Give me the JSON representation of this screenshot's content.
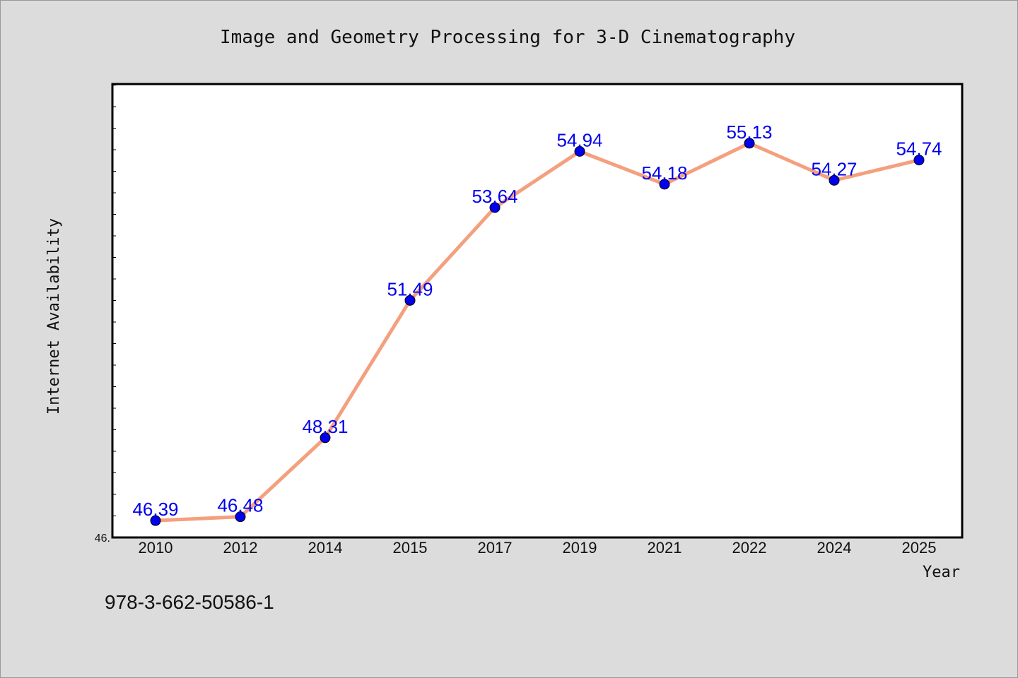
{
  "chart_data": {
    "type": "line",
    "title": "Image and Geometry Processing for 3-D Cinematography",
    "xlabel": "Year",
    "ylabel": "Internet Availability",
    "categories": [
      "2010",
      "2012",
      "2014",
      "2015",
      "2017",
      "2019",
      "2021",
      "2022",
      "2024",
      "2025"
    ],
    "series": [
      {
        "values": [
          46.39,
          46.48,
          48.31,
          51.49,
          53.64,
          54.94,
          54.18,
          55.13,
          54.27,
          54.74
        ],
        "labels": [
          "46.39",
          "46.48",
          "48.31",
          "51.49",
          "53.64",
          "54.94",
          "54.18",
          "55.13",
          "54.27",
          "54.74"
        ]
      }
    ],
    "ylim": [
      46.0,
      56.5
    ],
    "y_tick_label": "46.",
    "grid": false,
    "line_color": "#f4a07e",
    "marker_color": "#0000ee",
    "label_color": "#0000ee"
  },
  "footnote": "978-3-662-50586-1"
}
